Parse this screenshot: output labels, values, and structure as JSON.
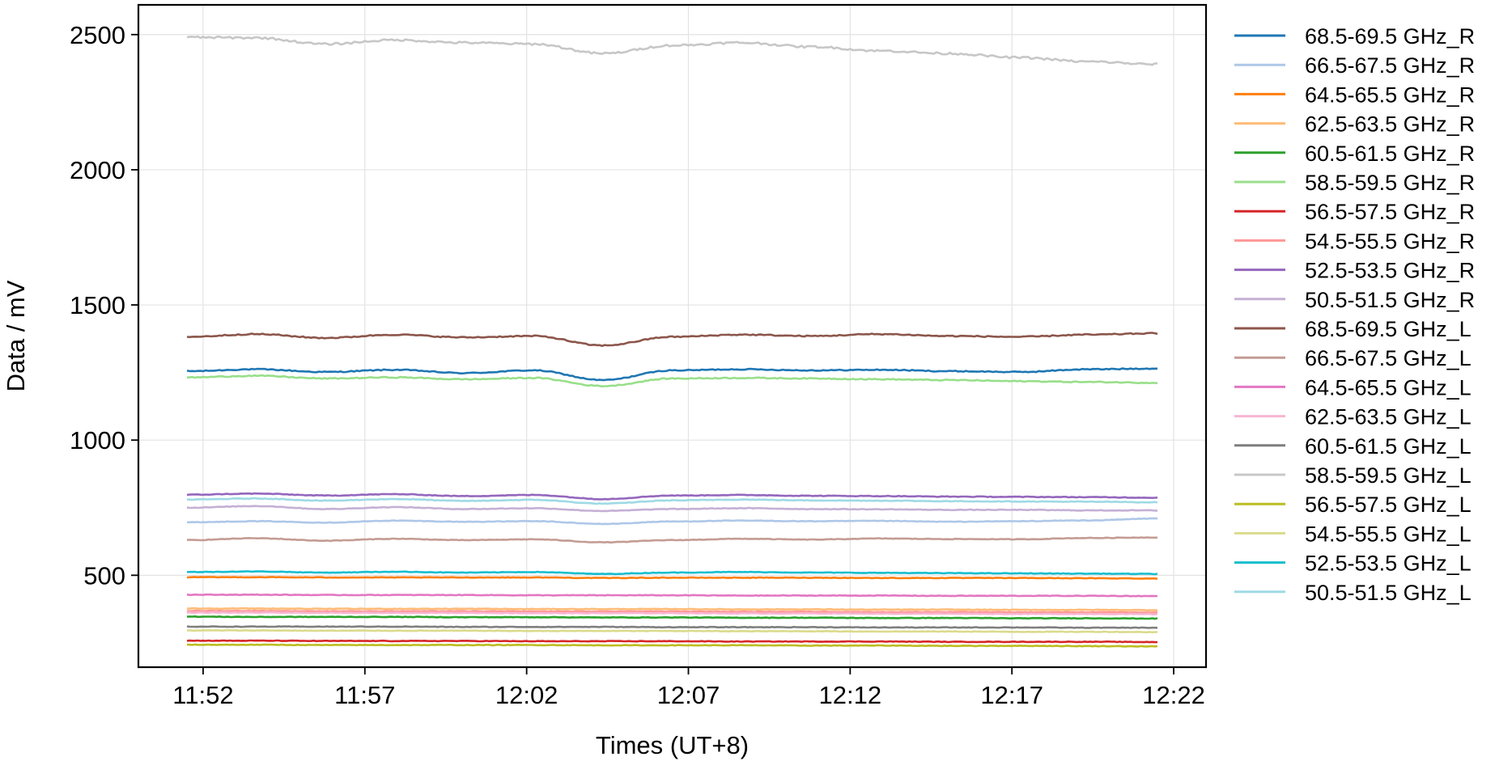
{
  "chart_data": {
    "type": "line",
    "xlabel": "Times (UT+8)",
    "ylabel": "Data / mV",
    "xlim": [
      "11:50",
      "12:23"
    ],
    "ylim": [
      160,
      2610
    ],
    "x_ticks": [
      "11:52",
      "11:57",
      "12:02",
      "12:07",
      "12:12",
      "12:17",
      "12:22"
    ],
    "y_ticks": [
      500,
      1000,
      1500,
      2000,
      2500
    ],
    "grid": true,
    "legend_position": "right, outside plot",
    "time_range": [
      "11:51:30",
      "12:21:30"
    ],
    "series": [
      {
        "name": "68.5-69.5 GHz_R",
        "color": "#1f77b4",
        "values": [
          1255,
          1262,
          1252,
          1260,
          1248,
          1258,
          1222,
          1258,
          1262,
          1258,
          1260,
          1255,
          1252,
          1262,
          1265
        ]
      },
      {
        "name": "66.5-67.5 GHz_R",
        "color": "#aec7e8",
        "values": [
          696,
          700,
          695,
          702,
          698,
          700,
          690,
          699,
          702,
          700,
          701,
          698,
          700,
          703,
          710
        ]
      },
      {
        "name": "64.5-65.5 GHz_R",
        "color": "#ff7f0e",
        "values": [
          493,
          493,
          492,
          492,
          492,
          492,
          490,
          491,
          491,
          491,
          490,
          490,
          490,
          489,
          488
        ]
      },
      {
        "name": "62.5-63.5 GHz_R",
        "color": "#ffbb78",
        "values": [
          377,
          377,
          376,
          376,
          376,
          375,
          375,
          375,
          374,
          374,
          373,
          373,
          372,
          372,
          371
        ]
      },
      {
        "name": "60.5-61.5 GHz_R",
        "color": "#2ca02c",
        "values": [
          347,
          346,
          346,
          346,
          345,
          345,
          344,
          344,
          343,
          343,
          342,
          342,
          341,
          341,
          340
        ]
      },
      {
        "name": "58.5-59.5 GHz_R",
        "color": "#98df8a",
        "values": [
          1232,
          1238,
          1228,
          1232,
          1225,
          1230,
          1200,
          1228,
          1230,
          1228,
          1225,
          1222,
          1218,
          1215,
          1212
        ]
      },
      {
        "name": "56.5-57.5 GHz_R",
        "color": "#d62728",
        "values": [
          258,
          258,
          257,
          257,
          257,
          256,
          256,
          256,
          255,
          255,
          255,
          254,
          254,
          254,
          253
        ]
      },
      {
        "name": "54.5-55.5 GHz_R",
        "color": "#ff9896",
        "values": [
          368,
          368,
          367,
          367,
          367,
          366,
          366,
          366,
          365,
          365,
          364,
          364,
          363,
          363,
          362
        ]
      },
      {
        "name": "52.5-53.5 GHz_R",
        "color": "#9467bd",
        "values": [
          798,
          802,
          795,
          800,
          793,
          797,
          782,
          795,
          797,
          794,
          793,
          791,
          790,
          789,
          787
        ]
      },
      {
        "name": "50.5-51.5 GHz_R",
        "color": "#c5b0d5",
        "values": [
          750,
          756,
          745,
          752,
          745,
          748,
          738,
          745,
          748,
          745,
          744,
          742,
          742,
          740,
          740
        ]
      },
      {
        "name": "68.5-69.5 GHz_L",
        "color": "#8c564b",
        "values": [
          1382,
          1392,
          1378,
          1390,
          1380,
          1385,
          1350,
          1382,
          1390,
          1385,
          1392,
          1385,
          1382,
          1390,
          1395
        ]
      },
      {
        "name": "66.5-67.5 GHz_L",
        "color": "#c49c94",
        "values": [
          630,
          637,
          628,
          635,
          630,
          633,
          622,
          630,
          635,
          632,
          636,
          634,
          633,
          638,
          640
        ]
      },
      {
        "name": "64.5-65.5 GHz_L",
        "color": "#e377c2",
        "values": [
          428,
          428,
          427,
          427,
          427,
          426,
          426,
          426,
          425,
          425,
          425,
          424,
          424,
          424,
          423
        ]
      },
      {
        "name": "62.5-63.5 GHz_L",
        "color": "#f7b6d2",
        "values": [
          362,
          362,
          361,
          361,
          361,
          360,
          360,
          360,
          359,
          359,
          358,
          358,
          357,
          357,
          356
        ]
      },
      {
        "name": "60.5-61.5 GHz_L",
        "color": "#7f7f7f",
        "values": [
          310,
          310,
          310,
          310,
          309,
          309,
          309,
          308,
          308,
          308,
          307,
          307,
          307,
          306,
          306
        ]
      },
      {
        "name": "58.5-59.5 GHz_L",
        "color": "#c7c7c7",
        "values": [
          2490,
          2488,
          2465,
          2480,
          2470,
          2465,
          2430,
          2460,
          2470,
          2455,
          2440,
          2430,
          2415,
          2400,
          2390
        ]
      },
      {
        "name": "56.5-57.5 GHz_L",
        "color": "#bcbd22",
        "values": [
          243,
          243,
          242,
          242,
          242,
          242,
          241,
          241,
          241,
          240,
          240,
          239,
          239,
          238,
          237
        ]
      },
      {
        "name": "54.5-55.5 GHz_L",
        "color": "#dbdb8d",
        "values": [
          296,
          296,
          295,
          295,
          295,
          294,
          294,
          294,
          293,
          293,
          292,
          292,
          291,
          291,
          290
        ]
      },
      {
        "name": "52.5-53.5 GHz_L",
        "color": "#17becf",
        "values": [
          512,
          514,
          510,
          513,
          510,
          512,
          505,
          510,
          512,
          510,
          509,
          508,
          507,
          506,
          505
        ]
      },
      {
        "name": "50.5-51.5 GHz_L",
        "color": "#9edae5",
        "values": [
          780,
          784,
          776,
          782,
          775,
          779,
          765,
          777,
          780,
          777,
          776,
          774,
          773,
          772,
          770
        ]
      }
    ]
  }
}
